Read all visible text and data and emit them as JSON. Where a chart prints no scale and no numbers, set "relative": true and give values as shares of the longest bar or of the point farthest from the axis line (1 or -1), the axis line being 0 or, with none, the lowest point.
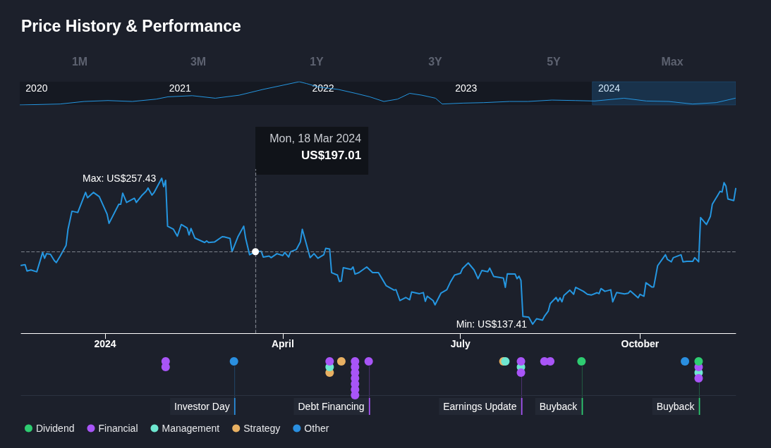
{
  "chart_data": [
    {
      "type": "line",
      "relative": true,
      "title": "Price History & Performance",
      "annotations": [
        "1M",
        "3M",
        "1Y",
        "3Y",
        "5Y",
        "Max"
      ],
      "tick_labels": "x",
      "marker": "none",
      "color": "#2596e0",
      "x": [
        "2019-11-19",
        "2020-03-01",
        "2020-05-01",
        "2020-07-01",
        "2020-09-01",
        "2020-11-01",
        "2020-12-01",
        "2021-02-01",
        "2021-04-01",
        "2021-06-01",
        "2021-08-01",
        "2021-09-15",
        "2021-11-01",
        "2021-11-20",
        "2021-12-20",
        "2022-02-08",
        "2022-03-25",
        "2022-04-30",
        "2022-06-05",
        "2022-07-10",
        "2022-08-10",
        "2022-09-10",
        "2022-10-15",
        "2022-11-01",
        "2022-12-25",
        "2023-02-15",
        "2023-04-22",
        "2023-06-08",
        "2023-08-08",
        "2023-10-06",
        "2023-11-25",
        "2024-02-08",
        "2024-04-05",
        "2024-06-01",
        "2024-08-01",
        "2024-09-30",
        "2024-11-18"
      ],
      "values": [
        0,
        0.04,
        0.15,
        0.19,
        0.15,
        0.25,
        0.35,
        0.4,
        0.29,
        0.42,
        0.67,
        0.83,
        1,
        0.92,
        0.77,
        0.67,
        0.5,
        0.35,
        0.15,
        0.25,
        0.5,
        0.42,
        0.29,
        0.04,
        0.08,
        0.1,
        0.15,
        0.15,
        0.21,
        0.19,
        0.17,
        0.29,
        0.17,
        0.15,
        0.04,
        0.1,
        0.29
      ],
      "xlim": [
        "2019-11-19",
        "2024-11-19"
      ],
      "xticks": [
        {
          "value": "2020-01-01",
          "label": "2020"
        },
        {
          "value": "2021-01-01",
          "label": "2021"
        },
        {
          "value": "2022-01-01",
          "label": "2022"
        },
        {
          "value": "2023-01-01",
          "label": "2023"
        },
        {
          "value": "2024-01-01",
          "label": "2024"
        }
      ],
      "bands": [
        {
          "axis": "x",
          "from": "2023-11-19",
          "to": "2024-11-19",
          "color": "#2a8fe0"
        }
      ]
    },
    {
      "type": "line",
      "marker": "none",
      "line_style": "solid",
      "grid": false,
      "color": "#2596e0",
      "x": [
        "2023-11-19",
        "2023-11-21",
        "2023-11-22",
        "2023-11-24",
        "2023-11-27",
        "2023-11-30",
        "2023-12-01",
        "2023-12-02",
        "2023-12-04",
        "2023-12-06",
        "2023-12-07",
        "2023-12-09",
        "2023-12-12",
        "2023-12-13",
        "2023-12-15",
        "2023-12-18",
        "2023-12-22",
        "2023-12-23",
        "2023-12-26",
        "2023-12-29",
        "2024-01-02",
        "2024-01-03",
        "2024-01-08",
        "2024-01-09",
        "2024-01-10",
        "2024-01-12",
        "2024-01-16",
        "2024-01-17",
        "2024-01-20",
        "2024-01-22",
        "2024-01-23",
        "2024-01-25",
        "2024-01-26",
        "2024-01-30",
        "2024-01-31",
        "2024-02-01",
        "2024-02-02",
        "2024-02-05",
        "2024-02-07",
        "2024-02-09",
        "2024-02-12",
        "2024-02-13",
        "2024-02-14",
        "2024-02-16",
        "2024-02-21",
        "2024-02-22",
        "2024-02-23",
        "2024-02-26",
        "2024-03-01",
        "2024-03-02",
        "2024-03-05",
        "2024-03-06",
        "2024-03-09",
        "2024-03-12",
        "2024-03-13",
        "2024-03-15",
        "2024-03-18",
        "2024-03-21",
        "2024-03-22",
        "2024-03-25",
        "2024-03-26",
        "2024-03-29",
        "2024-04-01",
        "2024-04-02",
        "2024-04-04",
        "2024-04-05",
        "2024-04-08",
        "2024-04-10",
        "2024-04-11",
        "2024-04-15",
        "2024-04-17",
        "2024-04-19",
        "2024-04-22",
        "2024-04-23",
        "2024-04-25",
        "2024-04-26",
        "2024-04-29",
        "2024-04-30",
        "2024-05-01",
        "2024-05-02",
        "2024-05-06",
        "2024-05-07",
        "2024-05-08",
        "2024-05-10",
        "2024-05-14",
        "2024-05-17",
        "2024-05-20",
        "2024-05-22",
        "2024-05-24",
        "2024-05-28",
        "2024-05-29",
        "2024-05-31",
        "2024-06-03",
        "2024-06-05",
        "2024-06-06",
        "2024-06-10",
        "2024-06-12",
        "2024-06-13",
        "2024-06-14",
        "2024-06-17",
        "2024-06-18",
        "2024-06-21",
        "2024-06-24",
        "2024-06-26",
        "2024-06-28",
        "2024-07-01",
        "2024-07-02",
        "2024-07-05",
        "2024-07-08",
        "2024-07-10",
        "2024-07-12",
        "2024-07-15",
        "2024-07-16",
        "2024-07-18",
        "2024-07-23",
        "2024-07-24",
        "2024-07-25",
        "2024-07-29",
        "2024-07-30",
        "2024-07-31",
        "2024-08-01",
        "2024-08-02",
        "2024-08-05",
        "2024-08-07",
        "2024-08-09",
        "2024-08-12",
        "2024-08-13",
        "2024-08-15",
        "2024-08-16",
        "2024-08-19",
        "2024-08-20",
        "2024-08-21",
        "2024-08-22",
        "2024-08-23",
        "2024-08-26",
        "2024-08-28",
        "2024-08-29",
        "2024-09-02",
        "2024-09-04",
        "2024-09-06",
        "2024-09-09",
        "2024-09-10",
        "2024-09-11",
        "2024-09-13",
        "2024-09-16",
        "2024-09-17",
        "2024-09-19",
        "2024-09-23",
        "2024-09-25",
        "2024-09-26",
        "2024-09-30",
        "2024-10-01",
        "2024-10-03",
        "2024-10-04",
        "2024-10-07",
        "2024-10-08",
        "2024-10-10",
        "2024-10-14",
        "2024-10-15",
        "2024-10-17",
        "2024-10-18",
        "2024-10-22",
        "2024-10-23",
        "2024-10-25",
        "2024-10-28",
        "2024-10-29",
        "2024-10-31",
        "2024-11-01",
        "2024-11-04",
        "2024-11-06",
        "2024-11-07",
        "2024-11-11",
        "2024-11-12",
        "2024-11-13",
        "2024-11-14",
        "2024-11-15",
        "2024-11-18",
        "2024-11-19"
      ],
      "values": [
        185.8,
        186.4,
        181.1,
        182.0,
        180.5,
        196.4,
        191.6,
        195.4,
        194.9,
        189.7,
        188.1,
        193.5,
        202.1,
        215.5,
        230.3,
        229.3,
        245.8,
        241.4,
        245.8,
        242.3,
        228.0,
        220.3,
        236.0,
        236.0,
        245.2,
        237.5,
        241.0,
        237.5,
        243.6,
        246.7,
        249.4,
        243.6,
        245.5,
        257.43,
        250.5,
        255.7,
        218.0,
        215.5,
        209.8,
        219.4,
        216.5,
        210.8,
        216.1,
        208.2,
        204.6,
        205.9,
        204.6,
        205.0,
        209.4,
        209.2,
        207.9,
        197.0,
        209.2,
        218.0,
        207.9,
        194.5,
        197.01,
        197.3,
        192.6,
        193.5,
        192.1,
        195.4,
        193.9,
        196.4,
        192.6,
        197.0,
        198.9,
        205.0,
        215.5,
        192.1,
        195.4,
        191.6,
        194.5,
        199.8,
        199.3,
        179.8,
        177.8,
        172.5,
        172.9,
        183.9,
        182.4,
        184.5,
        178.6,
        179.8,
        184.5,
        179.8,
        179.8,
        174.4,
        169.0,
        165.4,
        165.8,
        156.8,
        159.4,
        157.5,
        163.9,
        162.5,
        163.4,
        156.2,
        160.4,
        156.8,
        153.3,
        162.9,
        165.7,
        172.5,
        177.8,
        179.2,
        183.0,
        187.8,
        182.0,
        174.8,
        181.6,
        180.5,
        183.5,
        176.7,
        175.3,
        167.7,
        178.8,
        178.6,
        174.8,
        176.9,
        173.4,
        143.8,
        143.2,
        137.41,
        141.9,
        140.7,
        143.8,
        148.2,
        154.3,
        159.4,
        156.2,
        159.1,
        155.8,
        161.0,
        165.4,
        162.0,
        167.7,
        164.4,
        162.0,
        161.4,
        163.3,
        162.5,
        166.7,
        164.4,
        165.7,
        155.8,
        163.4,
        162.3,
        162.9,
        164.8,
        159.1,
        162.0,
        160.4,
        171.5,
        168.0,
        168.0,
        185.5,
        194.5,
        190.7,
        188.7,
        192.1,
        194.5,
        188.7,
        189.1,
        189.1,
        192.1,
        188.7,
        225.1,
        219.4,
        226.0,
        236.0,
        246.7,
        246.1,
        253.8,
        250.9,
        240.4,
        239.1,
        249.0
      ],
      "xlim": [
        "2023-11-19",
        "2024-11-19"
      ],
      "xticks": [
        {
          "value": "2024-01-01",
          "label": "2024"
        },
        {
          "value": "2024-04-01",
          "label": "April"
        },
        {
          "value": "2024-07-01",
          "label": "July"
        },
        {
          "value": "2024-10-01",
          "label": "October"
        }
      ],
      "ylim": [
        130,
        265
      ],
      "tick_labels": "x",
      "value_labels": [
        null,
        null,
        null,
        null,
        null,
        null,
        null,
        null,
        null,
        null,
        null,
        null,
        null,
        null,
        null,
        null,
        null,
        null,
        null,
        null,
        null,
        null,
        null,
        null,
        null,
        null,
        null,
        null,
        null,
        null,
        null,
        null,
        null,
        "Max: US$257.43",
        null,
        null,
        null,
        null,
        null,
        null,
        null,
        null,
        null,
        null,
        null,
        null,
        null,
        null,
        null,
        null,
        null,
        null,
        null,
        null,
        null,
        null,
        null,
        null,
        null,
        null,
        null,
        null,
        null,
        null,
        null,
        null,
        null,
        null,
        null,
        null,
        null,
        null,
        null,
        null,
        null,
        null,
        null,
        null,
        null,
        null,
        null,
        null,
        null,
        null,
        null,
        null,
        null,
        null,
        null,
        null,
        null,
        null,
        null,
        null,
        null,
        null,
        null,
        null,
        null,
        null,
        null,
        null,
        null,
        null,
        null,
        null,
        null,
        null,
        null,
        null,
        null,
        null,
        null,
        null,
        null,
        null,
        null,
        null,
        null,
        null,
        null,
        null,
        null,
        "Min: US$137.41",
        null,
        null,
        null,
        null,
        null,
        null,
        null,
        null,
        null,
        null,
        null,
        null,
        null,
        null,
        null,
        null,
        null,
        null,
        null,
        null,
        null,
        null,
        null,
        null,
        null,
        null,
        null,
        null,
        null,
        null,
        null,
        null,
        null,
        null,
        null,
        null,
        null,
        null,
        null,
        null,
        null,
        null,
        null,
        null,
        null,
        null,
        null,
        null,
        null,
        null,
        null,
        null,
        null,
        null
      ],
      "ref_lines": [
        {
          "axis": "x",
          "value": "2024-03-18",
          "color": "#7d828c",
          "line_style": "dashed"
        },
        {
          "axis": "y",
          "value": 197.01,
          "color": "#7d828c",
          "line_style": "dashed"
        }
      ],
      "annotations": [
        "Mon, 18 Mar 2024",
        "US$197.01"
      ]
    },
    {
      "type": "scatter",
      "relative": true,
      "tick_labels": false,
      "marker": "circle",
      "legend": "bottom left",
      "xlim": [
        "2023-11-19",
        "2024-11-19"
      ],
      "series": [
        {
          "name": "Dividend",
          "color": "#2ecc71",
          "x": [
            "2024-09-01",
            "2024-10-31"
          ],
          "values": [
            1,
            1
          ]
        },
        {
          "name": "Financial",
          "color": "#a855f7",
          "x": [
            "2024-02-01",
            "2024-02-01",
            "2024-04-25",
            "2024-05-08",
            "2024-05-08",
            "2024-05-08",
            "2024-05-08",
            "2024-05-08",
            "2024-05-08",
            "2024-05-08",
            "2024-05-15",
            "2024-08-01",
            "2024-08-01",
            "2024-08-13",
            "2024-08-16",
            "2024-10-31",
            "2024-10-31"
          ],
          "values": [
            1,
            0.833,
            1,
            1,
            0.833,
            0.667,
            0.5,
            0.333,
            0.167,
            0,
            1,
            1,
            0.667,
            1,
            1,
            0.833,
            0.5
          ]
        },
        {
          "name": "Management",
          "color": "#6ee7d0",
          "x": [
            "2024-04-25",
            "2024-07-24",
            "2024-08-01",
            "2024-10-31"
          ],
          "values": [
            0.833,
            1,
            0.833,
            0.667
          ]
        },
        {
          "name": "Strategy",
          "color": "#e8b062",
          "x": [
            "2024-04-25",
            "2024-05-01",
            "2024-07-23"
          ],
          "values": [
            0.667,
            1,
            1
          ]
        },
        {
          "name": "Other",
          "color": "#2a8fe0",
          "x": [
            "2024-03-07",
            "2024-10-24"
          ],
          "values": [
            1,
            1
          ]
        }
      ],
      "annotations": [
        {
          "text": "Investor Day",
          "x": "2024-03-07",
          "y": 1
        },
        {
          "text": "Debt Financing",
          "x": "2024-05-15",
          "y": 1
        },
        {
          "text": "Earnings Update",
          "x": "2024-08-01",
          "y": 1
        },
        {
          "text": "Buyback",
          "x": "2024-09-01",
          "y": 1
        },
        {
          "text": "Buyback",
          "x": "2024-10-31",
          "y": 1
        }
      ]
    }
  ]
}
